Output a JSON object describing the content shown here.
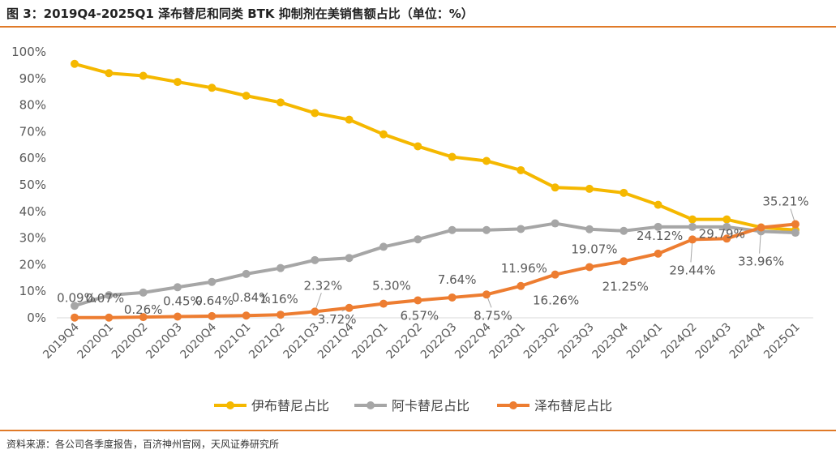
{
  "title": "图 3：2019Q4-2025Q1 泽布替尼和同类 BTK 抑制剂在美销售额占比（单位：%）",
  "source": "资料来源：各公司各季度报告，百济神州官网，天风证券研究所",
  "colors": {
    "rule": "#e07a28",
    "axis_text": "#595959",
    "grid": "#d9d9d9"
  },
  "chart_data": {
    "type": "line",
    "x": [
      "2019Q4",
      "2020Q1",
      "2020Q2",
      "2020Q3",
      "2020Q4",
      "2021Q1",
      "2021Q2",
      "2021Q3",
      "2021Q4",
      "2022Q1",
      "2022Q2",
      "2022Q3",
      "2022Q4",
      "2023Q1",
      "2023Q2",
      "2023Q3",
      "2023Q4",
      "2024Q1",
      "2024Q2",
      "2024Q3",
      "2024Q4",
      "2025Q1"
    ],
    "ylim": [
      0,
      100
    ],
    "y_ticks": [
      "0%",
      "10%",
      "20%",
      "30%",
      "40%",
      "50%",
      "60%",
      "70%",
      "80%",
      "90%",
      "100%"
    ],
    "grid": false,
    "legend_position": "bottom",
    "series": [
      {
        "name": "伊布替尼占比",
        "color": "#f5b800",
        "values": [
          95.5,
          92,
          91,
          88.7,
          86.5,
          83.5,
          81,
          77,
          74.5,
          69,
          64.5,
          60.5,
          59,
          55.5,
          49,
          48.5,
          47,
          42.5,
          37,
          37,
          34,
          33
        ],
        "labels": []
      },
      {
        "name": "阿卡替尼占比",
        "color": "#a6a6a6",
        "values": [
          4.5,
          8.5,
          9.5,
          11.5,
          13.5,
          16.5,
          18.7,
          21.7,
          22.5,
          26.7,
          29.5,
          33,
          33,
          33.4,
          35.5,
          33.3,
          32.7,
          34.2,
          34.2,
          34.2,
          32.5,
          32
        ],
        "labels": []
      },
      {
        "name": "泽布替尼占比",
        "color": "#ed7d31",
        "values": [
          0.09,
          0.07,
          0.26,
          0.45,
          0.64,
          0.84,
          1.16,
          2.32,
          3.72,
          5.3,
          6.57,
          7.64,
          8.75,
          11.96,
          16.26,
          19.07,
          21.25,
          24.12,
          29.44,
          29.79,
          33.96,
          35.21
        ],
        "labels": [
          "0.09%",
          "0.07%",
          "0.26%",
          "0.45%",
          "0.64%",
          "0.84%",
          "1.16%",
          "2.32%",
          "3.72%",
          "5.30%",
          "6.57%",
          "7.64%",
          "8.75%",
          "11.96%",
          "16.26%",
          "19.07%",
          "21.25%",
          "24.12%",
          "29.44%",
          "29.79%",
          "33.96%",
          "35.21%"
        ]
      }
    ]
  }
}
